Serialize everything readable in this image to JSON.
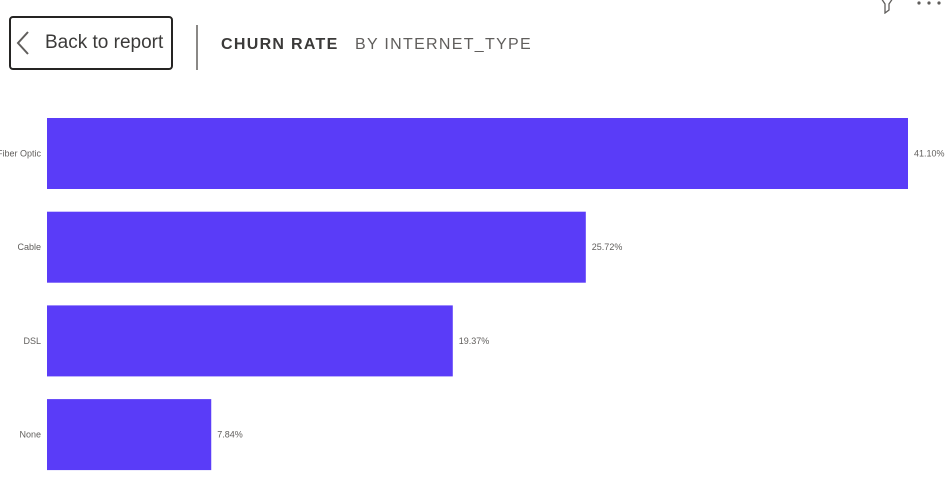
{
  "header": {
    "back_label": "Back to report",
    "title": "CHURN RATE",
    "subtitle": "BY INTERNET_TYPE",
    "icons": [
      "back-chevron-icon",
      "filter-icon",
      "more-options-icon"
    ]
  },
  "colors": {
    "bar": "#5a3cf8",
    "text": "#252423",
    "button_border": "#252423"
  },
  "chart_data": {
    "type": "bar",
    "orientation": "horizontal",
    "categories": [
      "Fiber Optic",
      "Cable",
      "DSL",
      "None"
    ],
    "values": [
      41.1,
      25.72,
      19.37,
      7.84
    ],
    "labels": [
      "41.10%",
      "25.72%",
      "19.37%",
      "7.84%"
    ],
    "xlim": [
      0,
      41.1
    ],
    "grid": false,
    "legend": "none"
  }
}
